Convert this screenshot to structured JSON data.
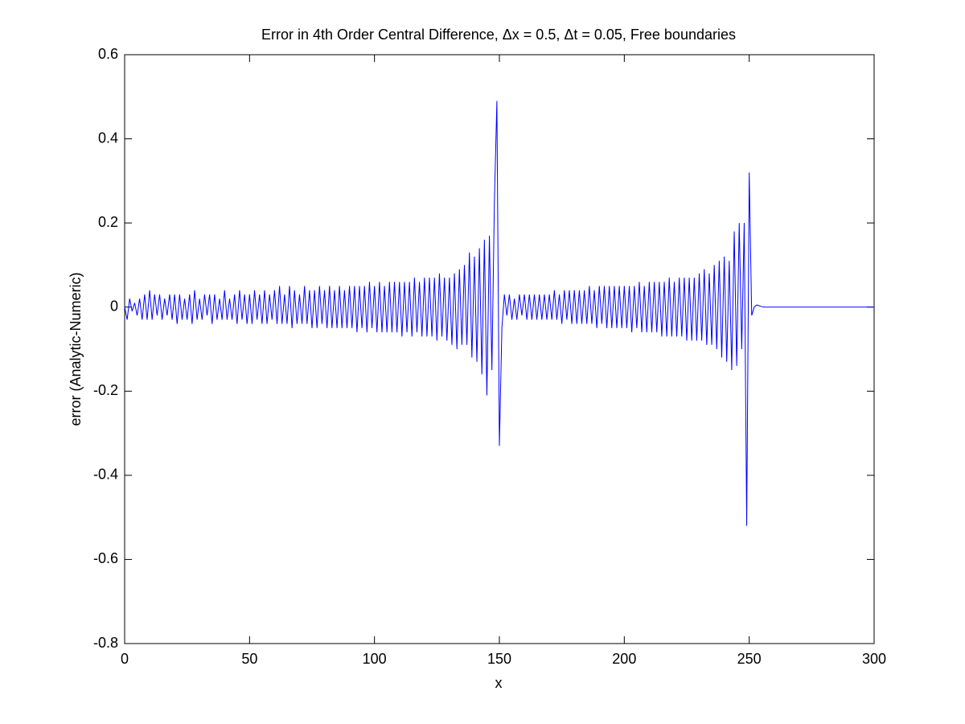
{
  "chart_data": {
    "type": "line",
    "title": "Error in 4th Order Central Difference, Δx = 0.5, Δt = 0.05, Free boundaries",
    "xlabel": "x",
    "ylabel": "error (Analytic-Numeric)",
    "color": "#0000ff",
    "xlim": [
      0,
      300
    ],
    "xticks": [
      0,
      50,
      100,
      150,
      200,
      250,
      300
    ],
    "ylim": [
      -0.8,
      0.6
    ],
    "yticks": [
      -0.8,
      -0.6,
      -0.4,
      -0.2,
      0,
      0.2,
      0.4,
      0.6
    ],
    "grid": false,
    "x": [
      0,
      1,
      2,
      3,
      4,
      5,
      6,
      7,
      8,
      9,
      10,
      11,
      12,
      13,
      14,
      15,
      16,
      17,
      18,
      19,
      20,
      21,
      22,
      23,
      24,
      25,
      26,
      27,
      28,
      29,
      30,
      31,
      32,
      33,
      34,
      35,
      36,
      37,
      38,
      39,
      40,
      41,
      42,
      43,
      44,
      45,
      46,
      47,
      48,
      49,
      50,
      51,
      52,
      53,
      54,
      55,
      56,
      57,
      58,
      59,
      60,
      61,
      62,
      63,
      64,
      65,
      66,
      67,
      68,
      69,
      70,
      71,
      72,
      73,
      74,
      75,
      76,
      77,
      78,
      79,
      80,
      81,
      82,
      83,
      84,
      85,
      86,
      87,
      88,
      89,
      90,
      91,
      92,
      93,
      94,
      95,
      96,
      97,
      98,
      99,
      100,
      101,
      102,
      103,
      104,
      105,
      106,
      107,
      108,
      109,
      110,
      111,
      112,
      113,
      114,
      115,
      116,
      117,
      118,
      119,
      120,
      121,
      122,
      123,
      124,
      125,
      126,
      127,
      128,
      129,
      130,
      131,
      132,
      133,
      134,
      135,
      136,
      137,
      138,
      139,
      140,
      141,
      142,
      143,
      144,
      145,
      146,
      147,
      148,
      149,
      150,
      151,
      152,
      153,
      154,
      155,
      156,
      157,
      158,
      159,
      160,
      161,
      162,
      163,
      164,
      165,
      166,
      167,
      168,
      169,
      170,
      171,
      172,
      173,
      174,
      175,
      176,
      177,
      178,
      179,
      180,
      181,
      182,
      183,
      184,
      185,
      186,
      187,
      188,
      189,
      190,
      191,
      192,
      193,
      194,
      195,
      196,
      197,
      198,
      199,
      200,
      201,
      202,
      203,
      204,
      205,
      206,
      207,
      208,
      209,
      210,
      211,
      212,
      213,
      214,
      215,
      216,
      217,
      218,
      219,
      220,
      221,
      222,
      223,
      224,
      225,
      226,
      227,
      228,
      229,
      230,
      231,
      232,
      233,
      234,
      235,
      236,
      237,
      238,
      239,
      240,
      241,
      242,
      243,
      244,
      245,
      246,
      247,
      248,
      249,
      250,
      251,
      252,
      253,
      254,
      255,
      256,
      257,
      258,
      259,
      260,
      261,
      262,
      263,
      264,
      265,
      266,
      267,
      268,
      269,
      270,
      271,
      272,
      273,
      274,
      275,
      276,
      277,
      278,
      279,
      280,
      281,
      282,
      283,
      284,
      285,
      286,
      287,
      288,
      289,
      290,
      291,
      292,
      293,
      294,
      295,
      296,
      297,
      298,
      299,
      300
    ],
    "values": [
      0.0,
      -0.03,
      0.02,
      -0.01,
      0.01,
      -0.02,
      0.02,
      -0.03,
      0.03,
      -0.03,
      0.04,
      -0.03,
      0.03,
      -0.02,
      0.03,
      -0.03,
      0.02,
      -0.02,
      0.03,
      -0.03,
      0.03,
      -0.04,
      0.03,
      -0.03,
      0.02,
      -0.03,
      0.03,
      -0.04,
      0.04,
      -0.03,
      0.02,
      -0.03,
      0.03,
      -0.02,
      0.03,
      -0.04,
      0.03,
      -0.03,
      0.02,
      -0.03,
      0.04,
      -0.03,
      0.02,
      -0.03,
      0.03,
      -0.04,
      0.04,
      -0.03,
      0.03,
      -0.04,
      0.03,
      -0.04,
      0.04,
      -0.03,
      0.03,
      -0.04,
      0.04,
      -0.04,
      0.03,
      -0.03,
      0.04,
      -0.04,
      0.05,
      -0.04,
      0.03,
      -0.04,
      0.05,
      -0.05,
      0.04,
      -0.04,
      0.03,
      -0.04,
      0.05,
      -0.04,
      0.04,
      -0.05,
      0.04,
      -0.05,
      0.05,
      -0.04,
      0.04,
      -0.05,
      0.05,
      -0.05,
      0.04,
      -0.05,
      0.05,
      -0.05,
      0.04,
      -0.05,
      0.05,
      -0.05,
      0.05,
      -0.06,
      0.05,
      -0.05,
      0.05,
      -0.06,
      0.06,
      -0.05,
      0.05,
      -0.06,
      0.06,
      -0.06,
      0.05,
      -0.06,
      0.06,
      -0.06,
      0.06,
      -0.06,
      0.06,
      -0.07,
      0.06,
      -0.06,
      0.06,
      -0.07,
      0.07,
      -0.06,
      0.06,
      -0.07,
      0.07,
      -0.07,
      0.07,
      -0.07,
      0.07,
      -0.08,
      0.08,
      -0.07,
      0.07,
      -0.08,
      0.07,
      -0.09,
      0.08,
      -0.1,
      0.09,
      -0.09,
      0.1,
      -0.09,
      0.13,
      -0.12,
      0.12,
      -0.13,
      0.14,
      -0.16,
      0.16,
      -0.21,
      0.17,
      -0.15,
      0.25,
      0.49,
      -0.33,
      -0.05,
      0.03,
      -0.02,
      0.03,
      -0.03,
      0.02,
      -0.03,
      0.03,
      -0.02,
      0.03,
      -0.03,
      0.03,
      -0.03,
      0.03,
      -0.03,
      0.03,
      -0.03,
      0.03,
      -0.03,
      0.03,
      -0.03,
      0.04,
      -0.03,
      0.03,
      -0.04,
      0.04,
      -0.03,
      0.04,
      -0.04,
      0.04,
      -0.04,
      0.04,
      -0.04,
      0.04,
      -0.04,
      0.05,
      -0.04,
      0.04,
      -0.05,
      0.05,
      -0.04,
      0.05,
      -0.05,
      0.05,
      -0.05,
      0.05,
      -0.05,
      0.05,
      -0.05,
      0.05,
      -0.05,
      0.05,
      -0.06,
      0.05,
      -0.05,
      0.06,
      -0.06,
      0.05,
      -0.06,
      0.06,
      -0.06,
      0.06,
      -0.06,
      0.06,
      -0.07,
      0.06,
      -0.07,
      0.07,
      -0.07,
      0.06,
      -0.07,
      0.07,
      -0.07,
      0.07,
      -0.08,
      0.07,
      -0.08,
      0.07,
      -0.08,
      0.08,
      -0.08,
      0.09,
      -0.09,
      0.08,
      -0.09,
      0.1,
      -0.1,
      0.11,
      -0.12,
      0.12,
      -0.13,
      0.11,
      -0.15,
      0.18,
      -0.14,
      0.2,
      -0.1,
      0.2,
      -0.52,
      0.32,
      -0.02,
      0.0,
      0.005,
      0.003,
      0.001,
      0,
      0,
      0,
      0,
      0,
      0,
      0,
      0,
      0,
      0,
      0,
      0,
      0,
      0,
      0,
      0,
      0,
      0,
      0,
      0,
      0,
      0,
      0,
      0,
      0,
      0,
      0,
      0,
      0,
      0,
      0,
      0,
      0,
      0,
      0,
      0,
      0,
      0,
      0,
      0,
      0,
      0,
      0,
      0,
      0
    ]
  }
}
